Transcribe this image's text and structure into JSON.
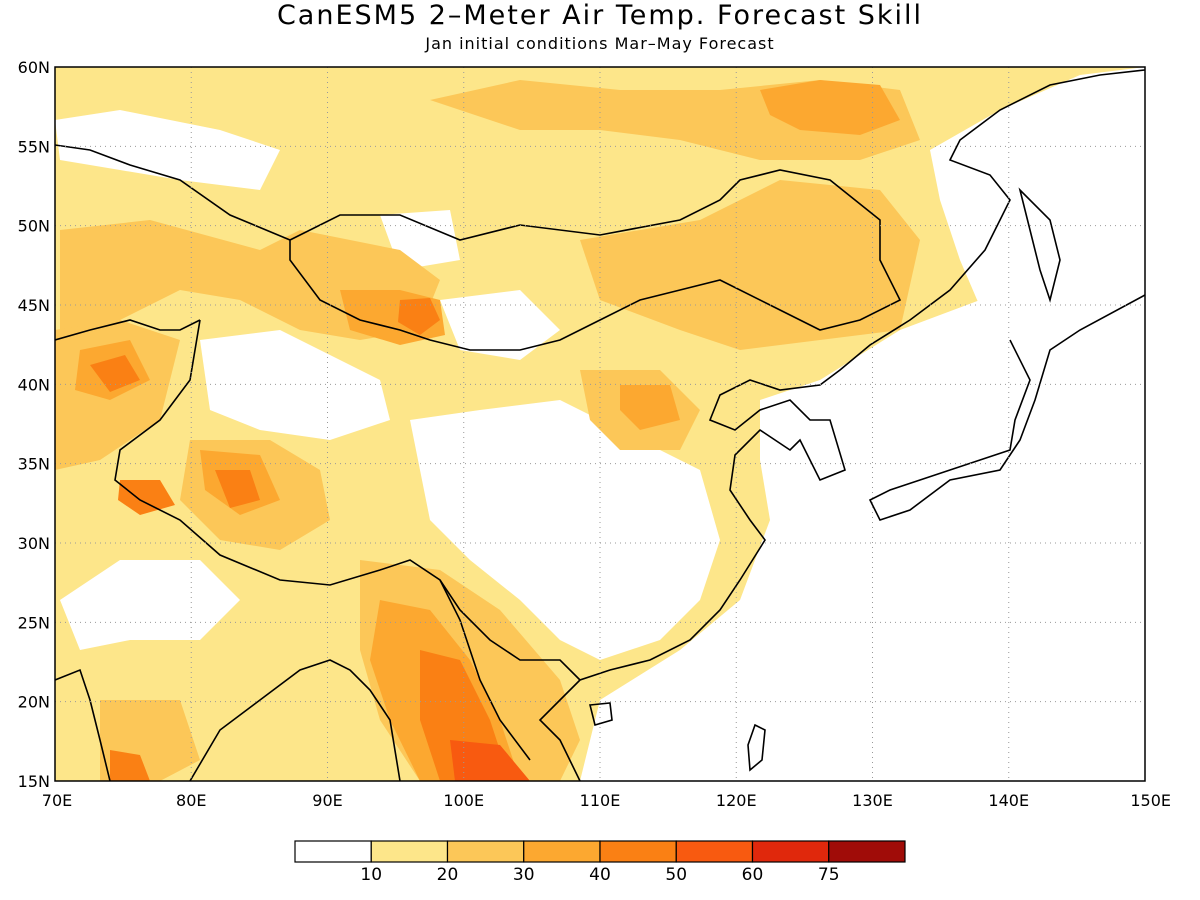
{
  "title": "CanESM5 2–Meter Air Temp. Forecast Skill",
  "subtitle": "Jan initial conditions  Mar–May Forecast",
  "map": {
    "lat_labels": [
      "60N",
      "55N",
      "50N",
      "45N",
      "40N",
      "35N",
      "30N",
      "25N",
      "20N",
      "15N"
    ],
    "lon_labels": [
      "70E",
      "80E",
      "90E",
      "100E",
      "110E",
      "120E",
      "130E",
      "140E",
      "150E"
    ],
    "lat_values": [
      60,
      55,
      50,
      45,
      40,
      35,
      30,
      25,
      20,
      15
    ],
    "lon_values": [
      70,
      80,
      90,
      100,
      110,
      120,
      130,
      140,
      150
    ],
    "extent": {
      "lon_min": 70,
      "lon_max": 150,
      "lat_min": 15,
      "lat_max": 60
    }
  },
  "colorbar": {
    "colors": [
      "#ffffff",
      "#fde68a",
      "#fcc758",
      "#fca830",
      "#fa8014",
      "#f85a10",
      "#e0280c",
      "#a00c08"
    ],
    "labels": [
      "10",
      "20",
      "30",
      "40",
      "50",
      "60",
      "75"
    ]
  }
}
